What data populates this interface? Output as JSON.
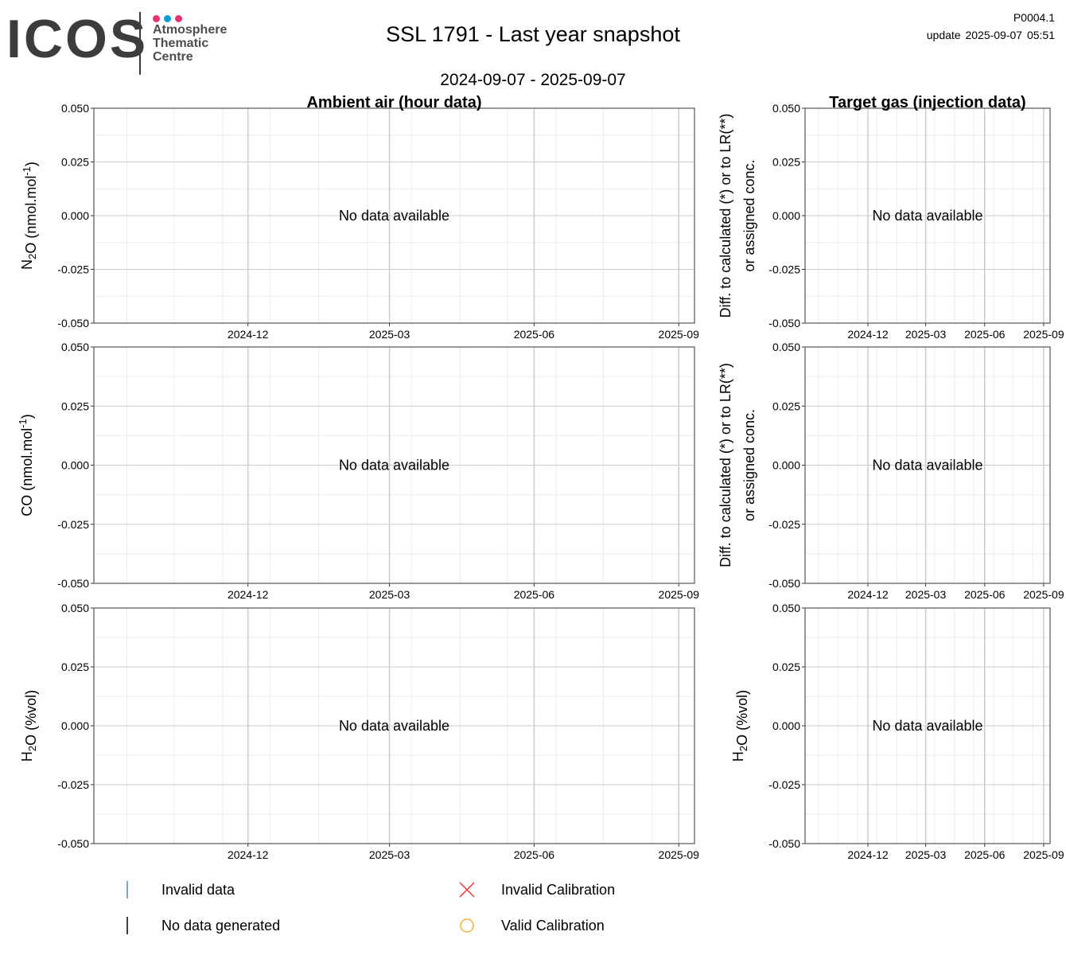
{
  "header": {
    "logo": {
      "name": "ICOS",
      "line1": "Atmosphere",
      "line2": "Thematic",
      "line3": "Centre",
      "dot_colors": [
        "#e6336e",
        "#00a0d6",
        "#e6336e"
      ]
    },
    "title": "SSL 1791 - Last year snapshot",
    "subtitle": "2024-09-07 - 2025-09-07",
    "version": "P0004.1",
    "update": "update  2025-09-07 05:51"
  },
  "chart_data": [
    {
      "id": "ambient-n2o",
      "type": "scatter",
      "title": "Ambient air (hour data)",
      "ylabel": "N2O (nmol.mol-1)",
      "ylim": [
        -0.05,
        0.05
      ],
      "y_ticks": [
        "0.050",
        "0.025",
        "0.000",
        "-0.025",
        "-0.050"
      ],
      "x_ticks": [
        "2024-12",
        "2025-03",
        "2025-06",
        "2025-09"
      ],
      "xlim": [
        "2024-09-07",
        "2025-09-07"
      ],
      "message": "No data available",
      "series": []
    },
    {
      "id": "target-n2o",
      "type": "scatter",
      "title": "Target gas (injection data)",
      "ylabel_lines": [
        "Diff. to calculated (*) or to LR(**)",
        "or assigned conc."
      ],
      "ylim": [
        -0.05,
        0.05
      ],
      "y_ticks": [
        "0.050",
        "0.025",
        "0.000",
        "-0.025",
        "-0.050"
      ],
      "x_ticks": [
        "2024-12",
        "2025-03",
        "2025-06",
        "2025-09"
      ],
      "xlim": [
        "2024-09-07",
        "2025-09-07"
      ],
      "message": "No data available",
      "series": []
    },
    {
      "id": "ambient-co",
      "type": "scatter",
      "ylabel": "CO (nmol.mol-1)",
      "ylim": [
        -0.05,
        0.05
      ],
      "y_ticks": [
        "0.050",
        "0.025",
        "0.000",
        "-0.025",
        "-0.050"
      ],
      "x_ticks": [
        "2024-12",
        "2025-03",
        "2025-06",
        "2025-09"
      ],
      "xlim": [
        "2024-09-07",
        "2025-09-07"
      ],
      "message": "No data available",
      "series": []
    },
    {
      "id": "target-co",
      "type": "scatter",
      "ylabel_lines": [
        "Diff. to calculated (*) or to LR(**)",
        "or assigned conc."
      ],
      "ylim": [
        -0.05,
        0.05
      ],
      "y_ticks": [
        "0.050",
        "0.025",
        "0.000",
        "-0.025",
        "-0.050"
      ],
      "x_ticks": [
        "2024-12",
        "2025-03",
        "2025-06",
        "2025-09"
      ],
      "xlim": [
        "2024-09-07",
        "2025-09-07"
      ],
      "message": "No data available",
      "series": []
    },
    {
      "id": "ambient-h2o",
      "type": "scatter",
      "ylabel": "H2O (%vol)",
      "ylim": [
        -0.05,
        0.05
      ],
      "y_ticks": [
        "0.050",
        "0.025",
        "0.000",
        "-0.025",
        "-0.050"
      ],
      "x_ticks": [
        "2024-12",
        "2025-03",
        "2025-06",
        "2025-09"
      ],
      "xlim": [
        "2024-09-07",
        "2025-09-07"
      ],
      "message": "No data available",
      "series": []
    },
    {
      "id": "target-h2o",
      "type": "scatter",
      "ylabel": "H2O (%vol)",
      "ylim": [
        -0.05,
        0.05
      ],
      "y_ticks": [
        "0.050",
        "0.025",
        "0.000",
        "-0.025",
        "-0.050"
      ],
      "x_ticks": [
        "2024-12",
        "2025-03",
        "2025-06",
        "2025-09"
      ],
      "xlim": [
        "2024-09-07",
        "2025-09-07"
      ],
      "message": "No data available",
      "series": []
    }
  ],
  "legend": [
    {
      "label": "Invalid data",
      "symbol": "vline",
      "color": "#4a8aa8"
    },
    {
      "label": "Invalid Calibration",
      "symbol": "cross",
      "color": "#e8322e"
    },
    {
      "label": "No data generated",
      "symbol": "vline",
      "color": "#000000"
    },
    {
      "label": "Valid Calibration",
      "symbol": "circle",
      "color": "#f2a81d"
    }
  ],
  "colors": {
    "grid_major": "#cccccc",
    "grid_minor": "#ebebeb",
    "axis": "#333333"
  }
}
